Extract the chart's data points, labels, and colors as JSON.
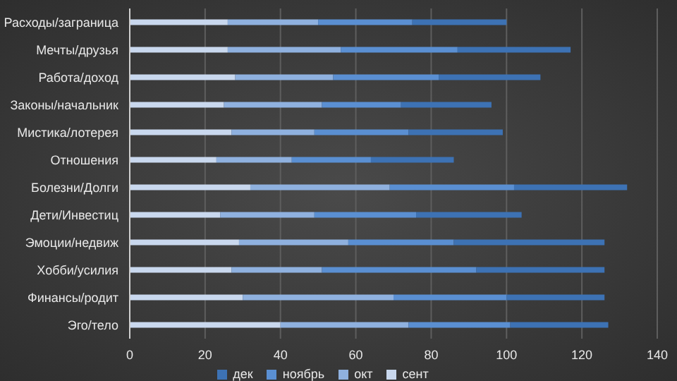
{
  "chart_data": {
    "type": "bar",
    "orientation": "horizontal",
    "stacked": true,
    "categories": [
      "Расходы/заграница",
      "Мечты/друзья",
      "Работа/доход",
      "Законы/начальник",
      "Мистика/лотерея",
      "Отношения",
      "Болезни/Долги",
      "Дети/Инвестиц",
      "Эмоции/недвиж",
      "Хобби/усилия",
      "Финансы/родит",
      "Эго/тело"
    ],
    "series": [
      {
        "name": "сент",
        "color": "#c9d8ee",
        "values": [
          26,
          26,
          28,
          25,
          27,
          23,
          32,
          24,
          29,
          27,
          30,
          40
        ]
      },
      {
        "name": "окт",
        "color": "#8fb1df",
        "values": [
          24,
          30,
          26,
          26,
          22,
          20,
          37,
          25,
          29,
          24,
          40,
          34
        ]
      },
      {
        "name": "ноябрь",
        "color": "#5a8fd2",
        "values": [
          25,
          31,
          28,
          21,
          25,
          21,
          33,
          27,
          28,
          41,
          30,
          27
        ]
      },
      {
        "name": "дек",
        "color": "#3d72b4",
        "values": [
          25,
          30,
          27,
          24,
          25,
          22,
          30,
          28,
          40,
          34,
          26,
          26
        ]
      }
    ],
    "xlim": [
      0,
      140
    ],
    "xticks": [
      0,
      20,
      40,
      60,
      80,
      100,
      120,
      140
    ],
    "grid": "x",
    "legend": "bottom"
  }
}
